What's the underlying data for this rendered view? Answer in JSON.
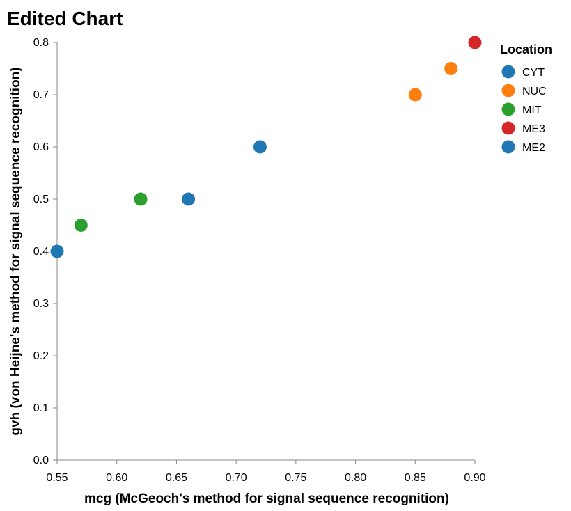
{
  "chart_data": {
    "type": "scatter",
    "title": "Edited Chart",
    "xlabel": "mcg (McGeoch's method for signal sequence recognition)",
    "ylabel": "gvh (von Heijne's method for signal sequence recognition)",
    "xlim": [
      0.55,
      0.9
    ],
    "ylim": [
      0.0,
      0.8
    ],
    "x_ticks": [
      "0.55",
      "0.60",
      "0.65",
      "0.70",
      "0.75",
      "0.80",
      "0.85",
      "0.90"
    ],
    "y_ticks": [
      "0.0",
      "0.1",
      "0.2",
      "0.3",
      "0.4",
      "0.5",
      "0.6",
      "0.7",
      "0.8"
    ],
    "grid": false,
    "legend": {
      "title": "Location",
      "placement": "top-right",
      "entries": [
        {
          "label": "CYT",
          "color": "#1f77b4"
        },
        {
          "label": "NUC",
          "color": "#ff7f0e"
        },
        {
          "label": "MIT",
          "color": "#2ca02c"
        },
        {
          "label": "ME3",
          "color": "#d62728"
        },
        {
          "label": "ME2",
          "color": "#1f77b4"
        }
      ]
    },
    "points": [
      {
        "x": 0.55,
        "y": 0.4,
        "location": "CYT"
      },
      {
        "x": 0.57,
        "y": 0.45,
        "location": "MIT"
      },
      {
        "x": 0.62,
        "y": 0.5,
        "location": "MIT"
      },
      {
        "x": 0.66,
        "y": 0.5,
        "location": "CYT"
      },
      {
        "x": 0.72,
        "y": 0.6,
        "location": "CYT"
      },
      {
        "x": 0.85,
        "y": 0.7,
        "location": "NUC"
      },
      {
        "x": 0.88,
        "y": 0.75,
        "location": "NUC"
      },
      {
        "x": 0.9,
        "y": 0.8,
        "location": "ME3"
      }
    ]
  }
}
